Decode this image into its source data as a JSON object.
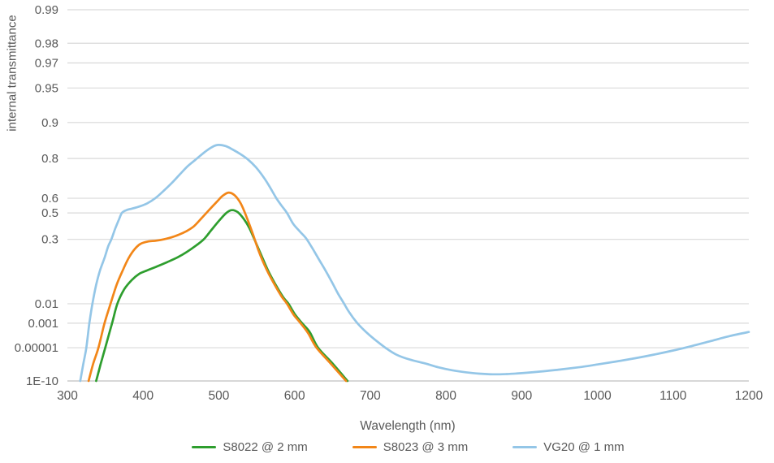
{
  "page": {
    "background": "#ffffff"
  },
  "chart_data": {
    "type": "line",
    "title": "",
    "xlabel": "Wavelength (nm)",
    "ylabel": "internal transmittance",
    "xlim": [
      300,
      1200
    ],
    "x_ticks": [
      300,
      400,
      500,
      600,
      700,
      800,
      900,
      1000,
      1100,
      1200
    ],
    "ylim": [
      1e-10,
      0.99
    ],
    "y_scale": "diabatie",
    "y_scale_note": "vertical position is linear in D = 1 - log10(log10(1/tau))",
    "y_ticks": [
      {
        "value": 0.99,
        "label": "0.99"
      },
      {
        "value": 0.98,
        "label": "0.98"
      },
      {
        "value": 0.97,
        "label": "0.97"
      },
      {
        "value": 0.95,
        "label": "0.95"
      },
      {
        "value": 0.9,
        "label": "0.9"
      },
      {
        "value": 0.8,
        "label": "0.8"
      },
      {
        "value": 0.6,
        "label": "0.6"
      },
      {
        "value": 0.5,
        "label": "0.5"
      },
      {
        "value": 0.3,
        "label": "0.3"
      },
      {
        "value": 0.01,
        "label": "0.01"
      },
      {
        "value": 0.001,
        "label": "0.001"
      },
      {
        "value": 1e-05,
        "label": "0.00001"
      },
      {
        "value": 1e-10,
        "label": "1E-10"
      }
    ],
    "grid": true,
    "legend_position": "bottom-center",
    "colors": {
      "grid_line": "#d9d9d9",
      "axis_line": "#bfbfbf",
      "text": "#595959",
      "background": "#ffffff"
    },
    "series": [
      {
        "name": "S8022 @ 2 mm",
        "color": "#2e9e2e",
        "points": [
          [
            338,
            1e-10
          ],
          [
            344,
            1e-07
          ],
          [
            350,
            1e-05
          ],
          [
            359,
            0.001
          ],
          [
            366,
            0.01
          ],
          [
            375,
            0.033
          ],
          [
            385,
            0.06
          ],
          [
            395,
            0.085
          ],
          [
            405,
            0.1
          ],
          [
            418,
            0.12
          ],
          [
            432,
            0.145
          ],
          [
            446,
            0.175
          ],
          [
            458,
            0.21
          ],
          [
            470,
            0.255
          ],
          [
            480,
            0.3
          ],
          [
            490,
            0.37
          ],
          [
            500,
            0.44
          ],
          [
            510,
            0.5
          ],
          [
            517,
            0.52
          ],
          [
            525,
            0.505
          ],
          [
            533,
            0.455
          ],
          [
            540,
            0.39
          ],
          [
            547,
            0.3
          ],
          [
            555,
            0.2
          ],
          [
            565,
            0.1
          ],
          [
            575,
            0.045
          ],
          [
            585,
            0.018
          ],
          [
            592,
            0.01
          ],
          [
            601,
            0.003
          ],
          [
            610,
            0.001
          ],
          [
            620,
            0.00025
          ],
          [
            631,
            1e-05
          ],
          [
            650,
            1.2e-07
          ],
          [
            670,
            1e-10
          ]
        ]
      },
      {
        "name": "S8023 @ 3 mm",
        "color": "#f28618",
        "points": [
          [
            328,
            1e-10
          ],
          [
            334,
            1e-07
          ],
          [
            341,
            1e-05
          ],
          [
            349,
            0.001
          ],
          [
            357,
            0.01
          ],
          [
            365,
            0.045
          ],
          [
            373,
            0.1
          ],
          [
            381,
            0.17
          ],
          [
            389,
            0.23
          ],
          [
            397,
            0.268
          ],
          [
            407,
            0.285
          ],
          [
            417,
            0.29
          ],
          [
            427,
            0.3
          ],
          [
            437,
            0.315
          ],
          [
            447,
            0.335
          ],
          [
            457,
            0.362
          ],
          [
            467,
            0.4
          ],
          [
            477,
            0.46
          ],
          [
            487,
            0.52
          ],
          [
            497,
            0.575
          ],
          [
            505,
            0.615
          ],
          [
            513,
            0.635
          ],
          [
            521,
            0.618
          ],
          [
            529,
            0.565
          ],
          [
            537,
            0.465
          ],
          [
            545,
            0.34
          ],
          [
            553,
            0.21
          ],
          [
            563,
            0.105
          ],
          [
            573,
            0.048
          ],
          [
            583,
            0.019
          ],
          [
            590,
            0.01
          ],
          [
            599,
            0.003
          ],
          [
            608,
            0.001
          ],
          [
            618,
            0.0002
          ],
          [
            629,
            1e-05
          ],
          [
            648,
            1e-07
          ],
          [
            668,
            1e-10
          ]
        ]
      },
      {
        "name": "VG20 @ 1 mm",
        "color": "#94c6e7",
        "points": [
          [
            317,
            1e-10
          ],
          [
            321,
            1e-07
          ],
          [
            325,
            1e-05
          ],
          [
            329,
            0.001
          ],
          [
            333,
            0.01
          ],
          [
            338,
            0.045
          ],
          [
            343,
            0.1
          ],
          [
            349,
            0.17
          ],
          [
            354,
            0.25
          ],
          [
            358,
            0.3
          ],
          [
            363,
            0.38
          ],
          [
            368,
            0.45
          ],
          [
            372,
            0.5
          ],
          [
            378,
            0.52
          ],
          [
            385,
            0.53
          ],
          [
            395,
            0.545
          ],
          [
            405,
            0.565
          ],
          [
            416,
            0.6
          ],
          [
            427,
            0.645
          ],
          [
            438,
            0.69
          ],
          [
            449,
            0.735
          ],
          [
            459,
            0.77
          ],
          [
            469,
            0.795
          ],
          [
            479,
            0.818
          ],
          [
            489,
            0.836
          ],
          [
            498,
            0.845
          ],
          [
            509,
            0.842
          ],
          [
            519,
            0.83
          ],
          [
            529,
            0.815
          ],
          [
            539,
            0.795
          ],
          [
            549,
            0.765
          ],
          [
            559,
            0.72
          ],
          [
            567,
            0.67
          ],
          [
            576,
            0.6
          ],
          [
            583,
            0.55
          ],
          [
            590,
            0.5
          ],
          [
            598,
            0.42
          ],
          [
            607,
            0.36
          ],
          [
            615,
            0.31
          ],
          [
            623,
            0.24
          ],
          [
            631,
            0.17
          ],
          [
            640,
            0.105
          ],
          [
            649,
            0.055
          ],
          [
            657,
            0.025
          ],
          [
            664,
            0.012
          ],
          [
            672,
            0.0042
          ],
          [
            683,
            0.001
          ],
          [
            694,
            0.00026
          ],
          [
            706,
            6e-05
          ],
          [
            720,
            1e-05
          ],
          [
            735,
            1.6e-06
          ],
          [
            752,
            4e-07
          ],
          [
            772,
            1.2e-07
          ],
          [
            790,
            3e-08
          ],
          [
            808,
            1e-08
          ],
          [
            826,
            4.5e-09
          ],
          [
            844,
            2.6e-09
          ],
          [
            862,
            2e-09
          ],
          [
            880,
            2.2e-09
          ],
          [
            900,
            3.2e-09
          ],
          [
            925,
            6e-09
          ],
          [
            950,
            1.3e-08
          ],
          [
            975,
            3e-08
          ],
          [
            1000,
            8e-08
          ],
          [
            1025,
            2.2e-07
          ],
          [
            1050,
            6e-07
          ],
          [
            1075,
            1.7e-06
          ],
          [
            1100,
            5e-06
          ],
          [
            1125,
            1.5e-05
          ],
          [
            1150,
            4.5e-05
          ],
          [
            1175,
            0.00012
          ],
          [
            1200,
            0.00025
          ]
        ]
      }
    ]
  }
}
